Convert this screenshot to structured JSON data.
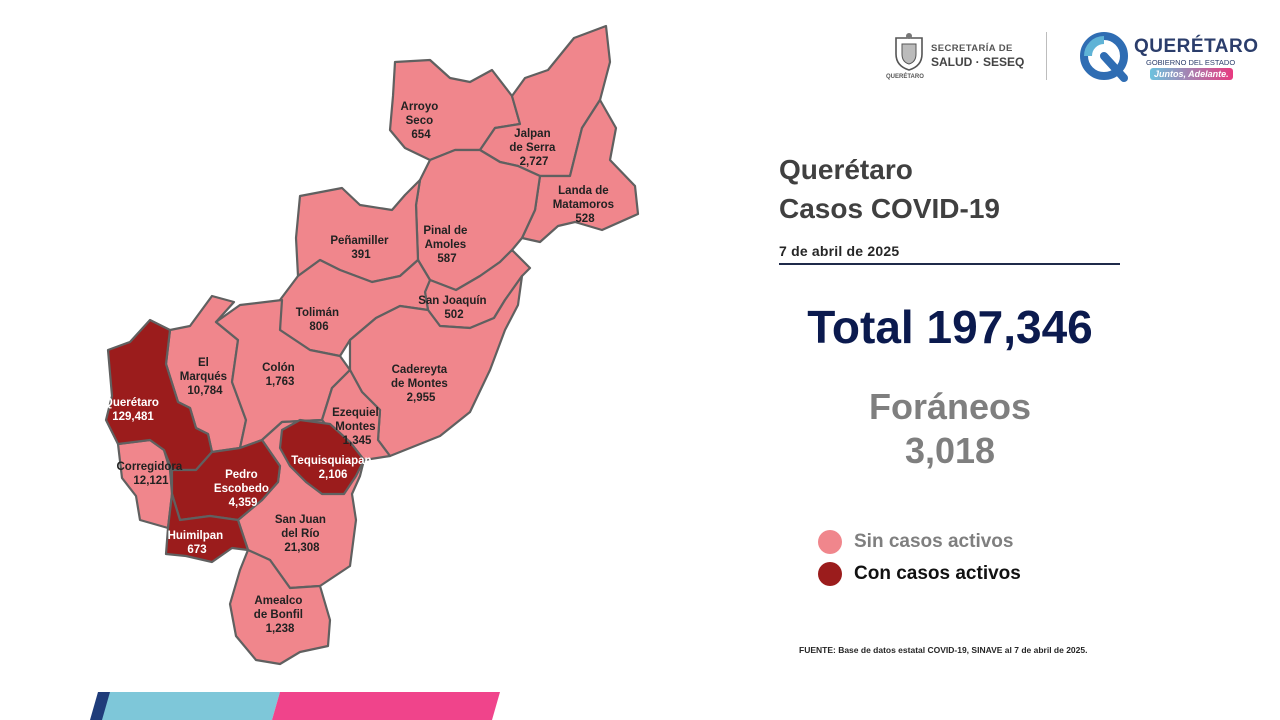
{
  "header": {
    "secretaria_line1": "SECRETARÍA DE",
    "secretaria_line2": "SALUD · SESEQ",
    "seal_caption": "QUERÉTARO",
    "state_name": "QUERÉTARO",
    "state_sub": "GOBIERNO DEL ESTADO",
    "slogan": "Juntos, Adelante."
  },
  "title_line1": "Querétaro",
  "title_line2": "Casos COVID-19",
  "date": "7 de abril de 2025",
  "total": "Total 197,346",
  "foraneos_label": "Foráneos",
  "foraneos_value": "3,018",
  "legend": {
    "inactive_label": "Sin casos activos",
    "active_label": "Con casos activos",
    "inactive_color": "#f0868c",
    "active_color": "#9b1c1c"
  },
  "source": "FUENTE: Base de datos estatal COVID-19,  SINAVE  al 7 de abril de 2025.",
  "municipalities": {
    "arroyo_seco": {
      "name_1": "Arroyo",
      "name_2": "Seco",
      "cases": "654",
      "active": false
    },
    "jalpan": {
      "name_1": "Jalpan",
      "name_2": "de Serra",
      "cases": "2,727",
      "active": false
    },
    "landa": {
      "name_1": "Landa de",
      "name_2": "Matamoros",
      "cases": "528",
      "active": false
    },
    "pinal": {
      "name_1": "Pinal de",
      "name_2": "Amoles",
      "cases": "587",
      "active": false
    },
    "penamiller": {
      "name_1": "Peñamiller",
      "cases": "391",
      "active": false
    },
    "san_joaquin": {
      "name_1": "San Joaquín",
      "cases": "502",
      "active": false
    },
    "toliman": {
      "name_1": "Tolimán",
      "cases": "806",
      "active": false
    },
    "cadereyta": {
      "name_1": "Cadereyta",
      "name_2": "de Montes",
      "cases": "2,955",
      "active": false
    },
    "el_marques": {
      "name_1": "El",
      "name_2": "Marqués",
      "cases": "10,784",
      "active": false
    },
    "colon": {
      "name_1": "Colón",
      "cases": "1,763",
      "active": false
    },
    "queretaro": {
      "name_1": "Querétaro",
      "cases": "129,481",
      "active": true
    },
    "ezequiel": {
      "name_1": "Ezequiel",
      "name_2": "Montes",
      "cases": "1,345",
      "active": false
    },
    "tequisquiapan": {
      "name_1": "Tequisquiapan",
      "cases": "2,106",
      "active": true
    },
    "corregidora": {
      "name_1": "Corregidora",
      "cases": "12,121",
      "active": false
    },
    "pedro_escobedo": {
      "name_1": "Pedro",
      "name_2": "Escobedo",
      "cases": "4,359",
      "active": true
    },
    "huimilpan": {
      "name_1": "Huimilpan",
      "cases": "673",
      "active": true
    },
    "san_juan": {
      "name_1": "San Juan",
      "name_2": "del Río",
      "cases": "21,308",
      "active": false
    },
    "amealco": {
      "name_1": "Amealco",
      "name_2": "de Bonfil",
      "cases": "1,238",
      "active": false
    }
  }
}
